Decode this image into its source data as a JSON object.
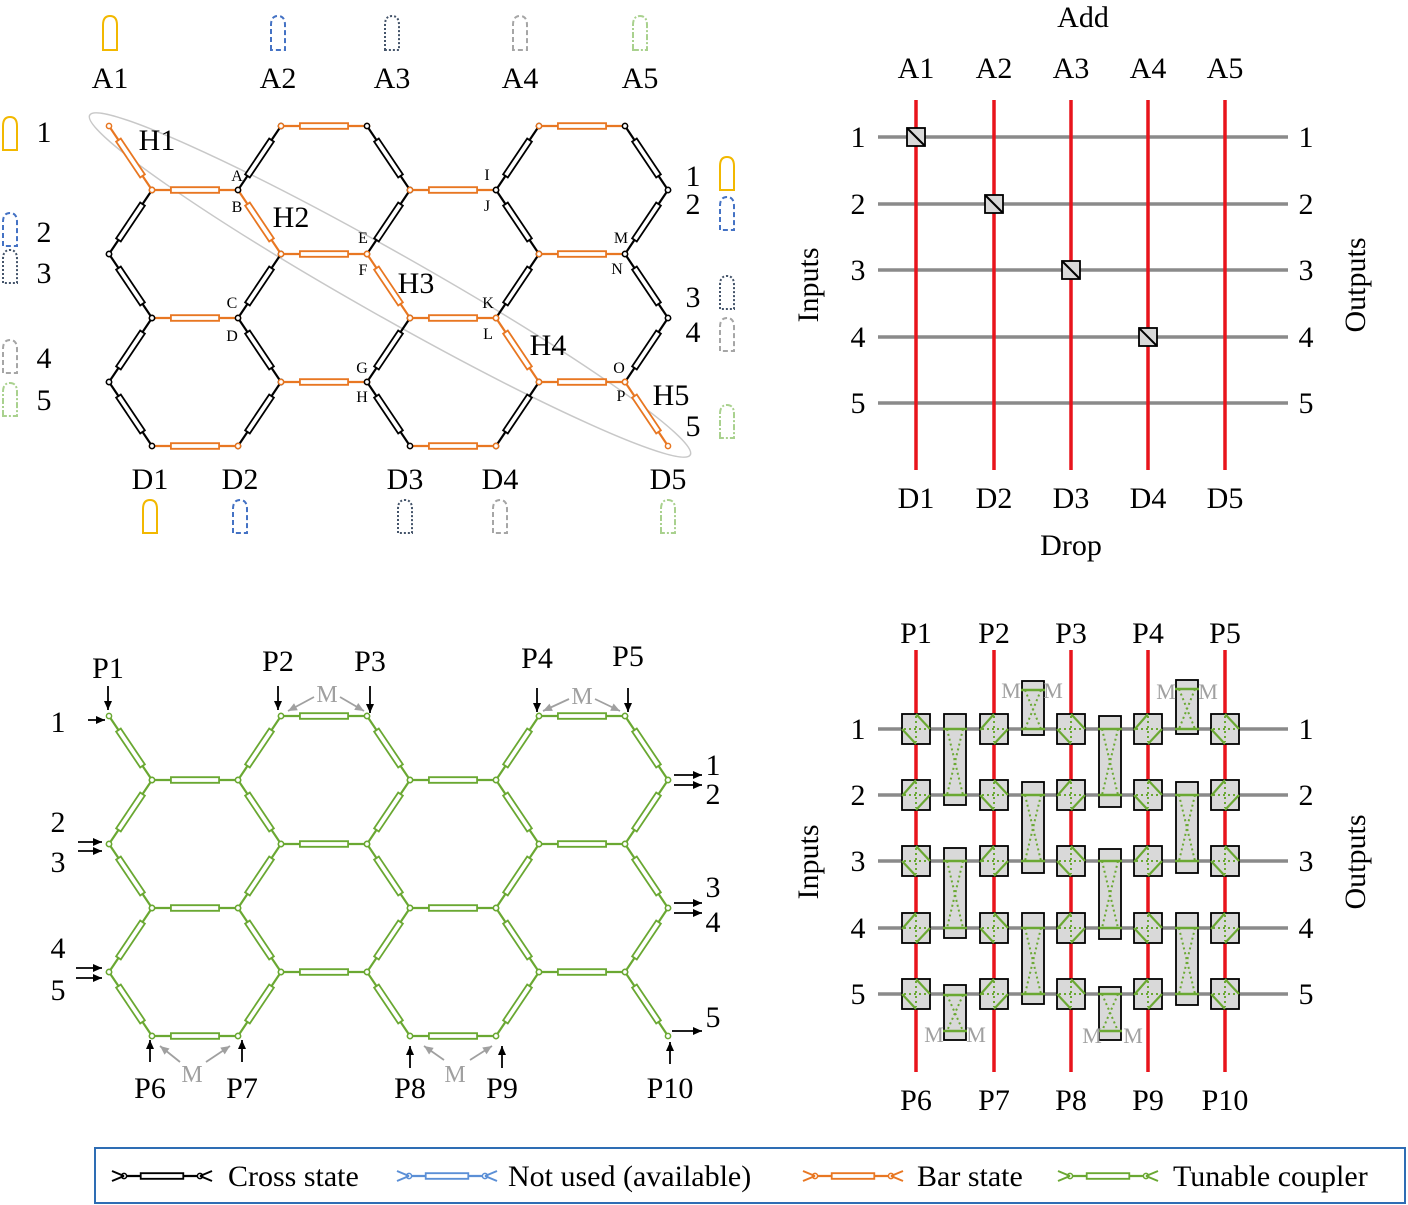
{
  "colors": {
    "cross": "#000000",
    "bar": "#e87722",
    "tunable": "#6aa832",
    "not_used": "#5b8fd6",
    "waveguide_red": "#e8141c",
    "waveguide_gray": "#8a8a8a",
    "cell_fill": "#d9d9d9",
    "mirror_label": "#a0a0a0",
    "legend_border": "#2e6db4",
    "port_icons": [
      "#f2b800",
      "#4472c4",
      "#44546a",
      "#a6a6a6",
      "#a9d18e"
    ]
  },
  "top_left": {
    "add_ports": [
      "A1",
      "A2",
      "A3",
      "A4",
      "A5"
    ],
    "drop_ports": [
      "D1",
      "D2",
      "D3",
      "D4",
      "D5"
    ],
    "inputs": [
      "1",
      "2",
      "3",
      "4",
      "5"
    ],
    "outputs": [
      "1",
      "2",
      "3",
      "4",
      "5"
    ],
    "nodes": [
      "A",
      "B",
      "C",
      "D",
      "E",
      "F",
      "G",
      "H",
      "I",
      "J",
      "K",
      "L",
      "M",
      "N",
      "O",
      "P"
    ],
    "hops": [
      "H1",
      "H2",
      "H3",
      "H4",
      "H5"
    ]
  },
  "top_right": {
    "add_title": "Add",
    "add_ports": [
      "A1",
      "A2",
      "A3",
      "A4",
      "A5"
    ],
    "drop_title": "Drop",
    "drop_ports": [
      "D1",
      "D2",
      "D3",
      "D4",
      "D5"
    ],
    "inputs_title": "Inputs",
    "outputs_title": "Outputs",
    "rows_left": [
      "1",
      "2",
      "3",
      "4",
      "5"
    ],
    "rows_right": [
      "1",
      "2",
      "3",
      "4",
      "5"
    ]
  },
  "bottom_left": {
    "ports": [
      "P1",
      "P2",
      "P3",
      "P4",
      "P5",
      "P6",
      "P7",
      "P8",
      "P9",
      "P10"
    ],
    "inputs": [
      "1",
      "2",
      "3",
      "4",
      "5"
    ],
    "outputs": [
      "1",
      "2",
      "3",
      "4",
      "5"
    ],
    "mirror_label": "M"
  },
  "bottom_right": {
    "top_ports": [
      "P1",
      "P2",
      "P3",
      "P4",
      "P5"
    ],
    "bottom_ports": [
      "P6",
      "P7",
      "P8",
      "P9",
      "P10"
    ],
    "inputs_title": "Inputs",
    "outputs_title": "Outputs",
    "rows_left": [
      "1",
      "2",
      "3",
      "4",
      "5"
    ],
    "rows_right": [
      "1",
      "2",
      "3",
      "4",
      "5"
    ],
    "mirror_label": "M"
  },
  "legend": {
    "items": [
      {
        "label": "Cross state",
        "color": "#000000"
      },
      {
        "label": "Not used (available)",
        "color": "#5b8fd6"
      },
      {
        "label": "Bar state",
        "color": "#e87722"
      },
      {
        "label": "Tunable coupler",
        "color": "#6aa832"
      }
    ]
  }
}
